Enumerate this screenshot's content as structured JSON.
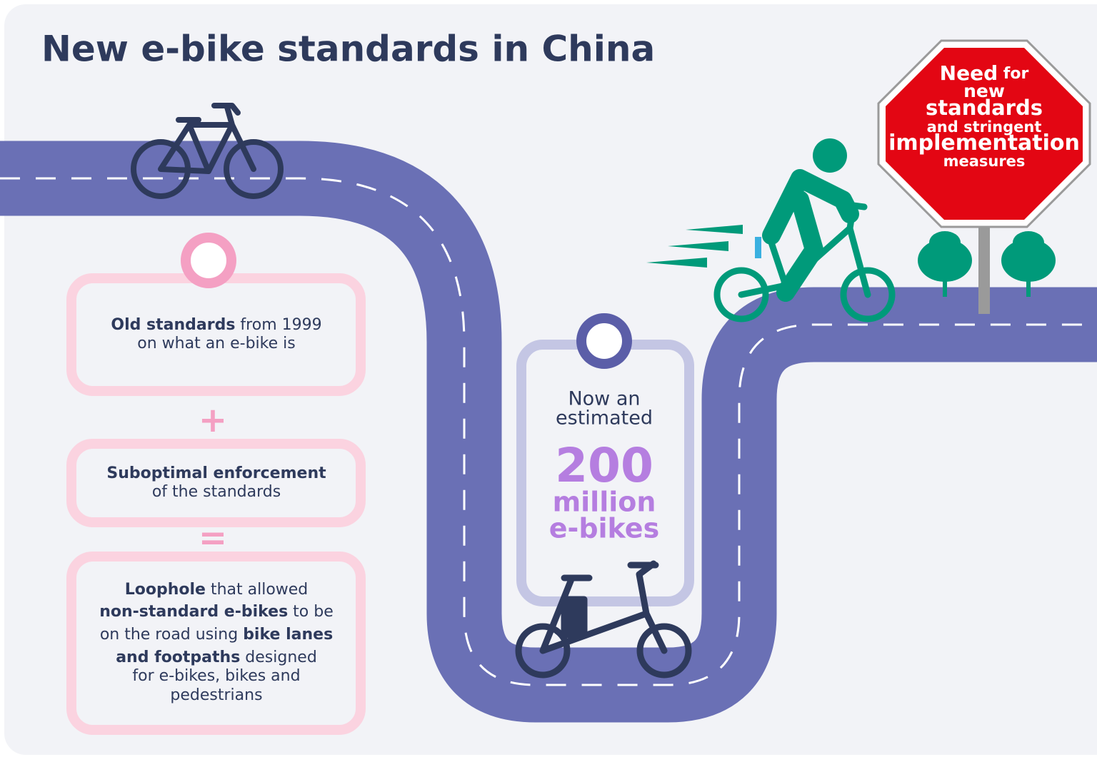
{
  "title": "New e-bike standards in China",
  "boxes": [
    {
      "lines": [
        [
          {
            "text": "Old standards",
            "bold": true
          },
          {
            "text": " from 1999",
            "bold": false
          }
        ],
        [
          {
            "text": "on what an e-bike is",
            "bold": false
          }
        ]
      ]
    },
    {
      "lines": [
        [
          {
            "text": "Suboptimal enforcement",
            "bold": true
          }
        ],
        [
          {
            "text": "of the standards",
            "bold": false
          }
        ]
      ]
    },
    {
      "lines": [
        [
          {
            "text": "Loophole",
            "bold": true
          },
          {
            "text": " that allowed",
            "bold": false
          }
        ],
        [
          {
            "text": "non-standard e-bikes",
            "bold": true
          },
          {
            "text": " to be",
            "bold": false
          }
        ],
        [
          {
            "text": "on the road using ",
            "bold": false
          },
          {
            "text": "bike lanes",
            "bold": true
          }
        ],
        [
          {
            "text": "and footpaths",
            "bold": true
          },
          {
            "text": " designed",
            "bold": false
          }
        ],
        [
          {
            "text": "for e-bikes, bikes and",
            "bold": false
          }
        ],
        [
          {
            "text": "pedestrians",
            "bold": false
          }
        ]
      ]
    }
  ],
  "operators": [
    "+",
    "="
  ],
  "estimate": {
    "lines": [
      "Now an",
      "estimated"
    ],
    "number": "200",
    "unit": [
      "million",
      "e-bikes"
    ]
  },
  "sign": {
    "lines": [
      [
        {
          "text": "Need",
          "bold": true
        },
        {
          "text": " for",
          "bold": true
        }
      ],
      [
        {
          "text": "new",
          "bold": true
        }
      ],
      [
        {
          "text": "standards",
          "bold": true
        }
      ],
      [
        {
          "text": "and stringent",
          "bold": true
        }
      ],
      [
        {
          "text": "implementation",
          "bold": true
        }
      ],
      [
        {
          "text": "measures",
          "bold": true
        }
      ]
    ]
  }
}
